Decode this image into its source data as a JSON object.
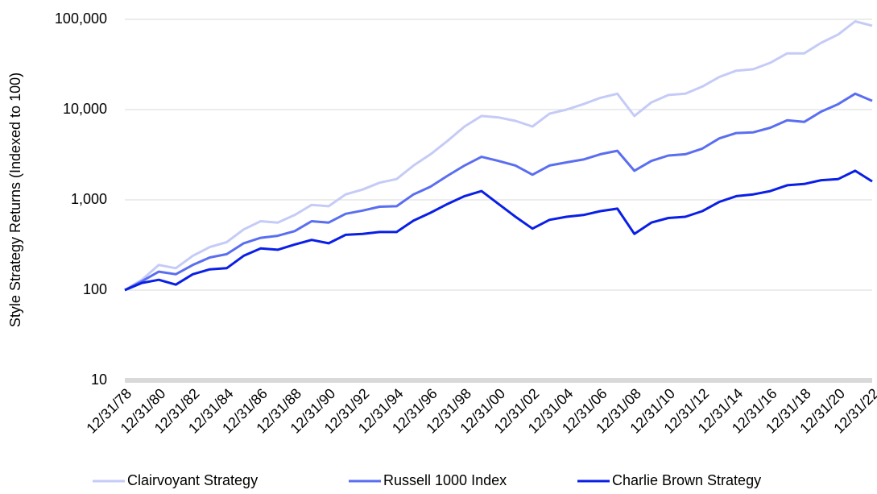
{
  "chart_data": {
    "type": "line",
    "y_label": "Style Strategy Returns (Indexed to 100)",
    "yscale": "log",
    "ylim": [
      10,
      100000
    ],
    "yticks": [
      10,
      100,
      {
        "value": 1000,
        "label": "1,000"
      },
      {
        "value": 10000,
        "label": "10,000"
      },
      {
        "value": 100000,
        "label": "100,000"
      }
    ],
    "grid": true,
    "legend": "bottom",
    "categories": [
      "12/31/78",
      null,
      "12/31/80",
      null,
      "12/31/82",
      null,
      "12/31/84",
      null,
      "12/31/86",
      null,
      "12/31/88",
      null,
      "12/31/90",
      null,
      "12/31/92",
      null,
      "12/31/94",
      null,
      "12/31/96",
      null,
      "12/31/98",
      null,
      "12/31/00",
      null,
      "12/31/02",
      null,
      "12/31/04",
      null,
      "12/31/06",
      null,
      "12/31/08",
      null,
      "12/31/10",
      null,
      "12/31/12",
      null,
      "12/31/14",
      null,
      "12/31/16",
      null,
      "12/31/18",
      null,
      "12/31/20",
      null,
      "12/31/22"
    ],
    "series": [
      {
        "name": "Clairvoyant Strategy",
        "color": "#c5cbf7",
        "values": [
          100,
          130,
          190,
          175,
          240,
          300,
          340,
          470,
          580,
          560,
          680,
          880,
          850,
          1150,
          1300,
          1550,
          1700,
          2400,
          3200,
          4500,
          6500,
          8500,
          8200,
          7500,
          6500,
          9000,
          10000,
          11500,
          13500,
          15000,
          8500,
          12000,
          14500,
          15000,
          18000,
          23000,
          27000,
          28000,
          33000,
          42000,
          42000,
          55000,
          68000,
          95000,
          85000
        ]
      },
      {
        "name": "Russell 1000 Index",
        "color": "#5a6ef0",
        "values": [
          100,
          125,
          160,
          150,
          190,
          230,
          250,
          330,
          380,
          400,
          450,
          580,
          560,
          700,
          760,
          840,
          850,
          1150,
          1400,
          1850,
          2400,
          3000,
          2700,
          2400,
          1900,
          2400,
          2600,
          2800,
          3200,
          3500,
          2100,
          2700,
          3100,
          3200,
          3700,
          4800,
          5500,
          5600,
          6300,
          7600,
          7300,
          9500,
          11500,
          15000,
          12500
        ]
      },
      {
        "name": "Charlie Brown Strategy",
        "color": "#0a1fe6",
        "values": [
          100,
          120,
          130,
          115,
          150,
          170,
          175,
          240,
          290,
          280,
          320,
          360,
          330,
          410,
          420,
          440,
          440,
          590,
          720,
          900,
          1100,
          1250,
          900,
          650,
          480,
          600,
          650,
          680,
          750,
          800,
          420,
          560,
          630,
          650,
          750,
          950,
          1100,
          1150,
          1250,
          1450,
          1500,
          1650,
          1700,
          2100,
          1600
        ]
      }
    ]
  }
}
